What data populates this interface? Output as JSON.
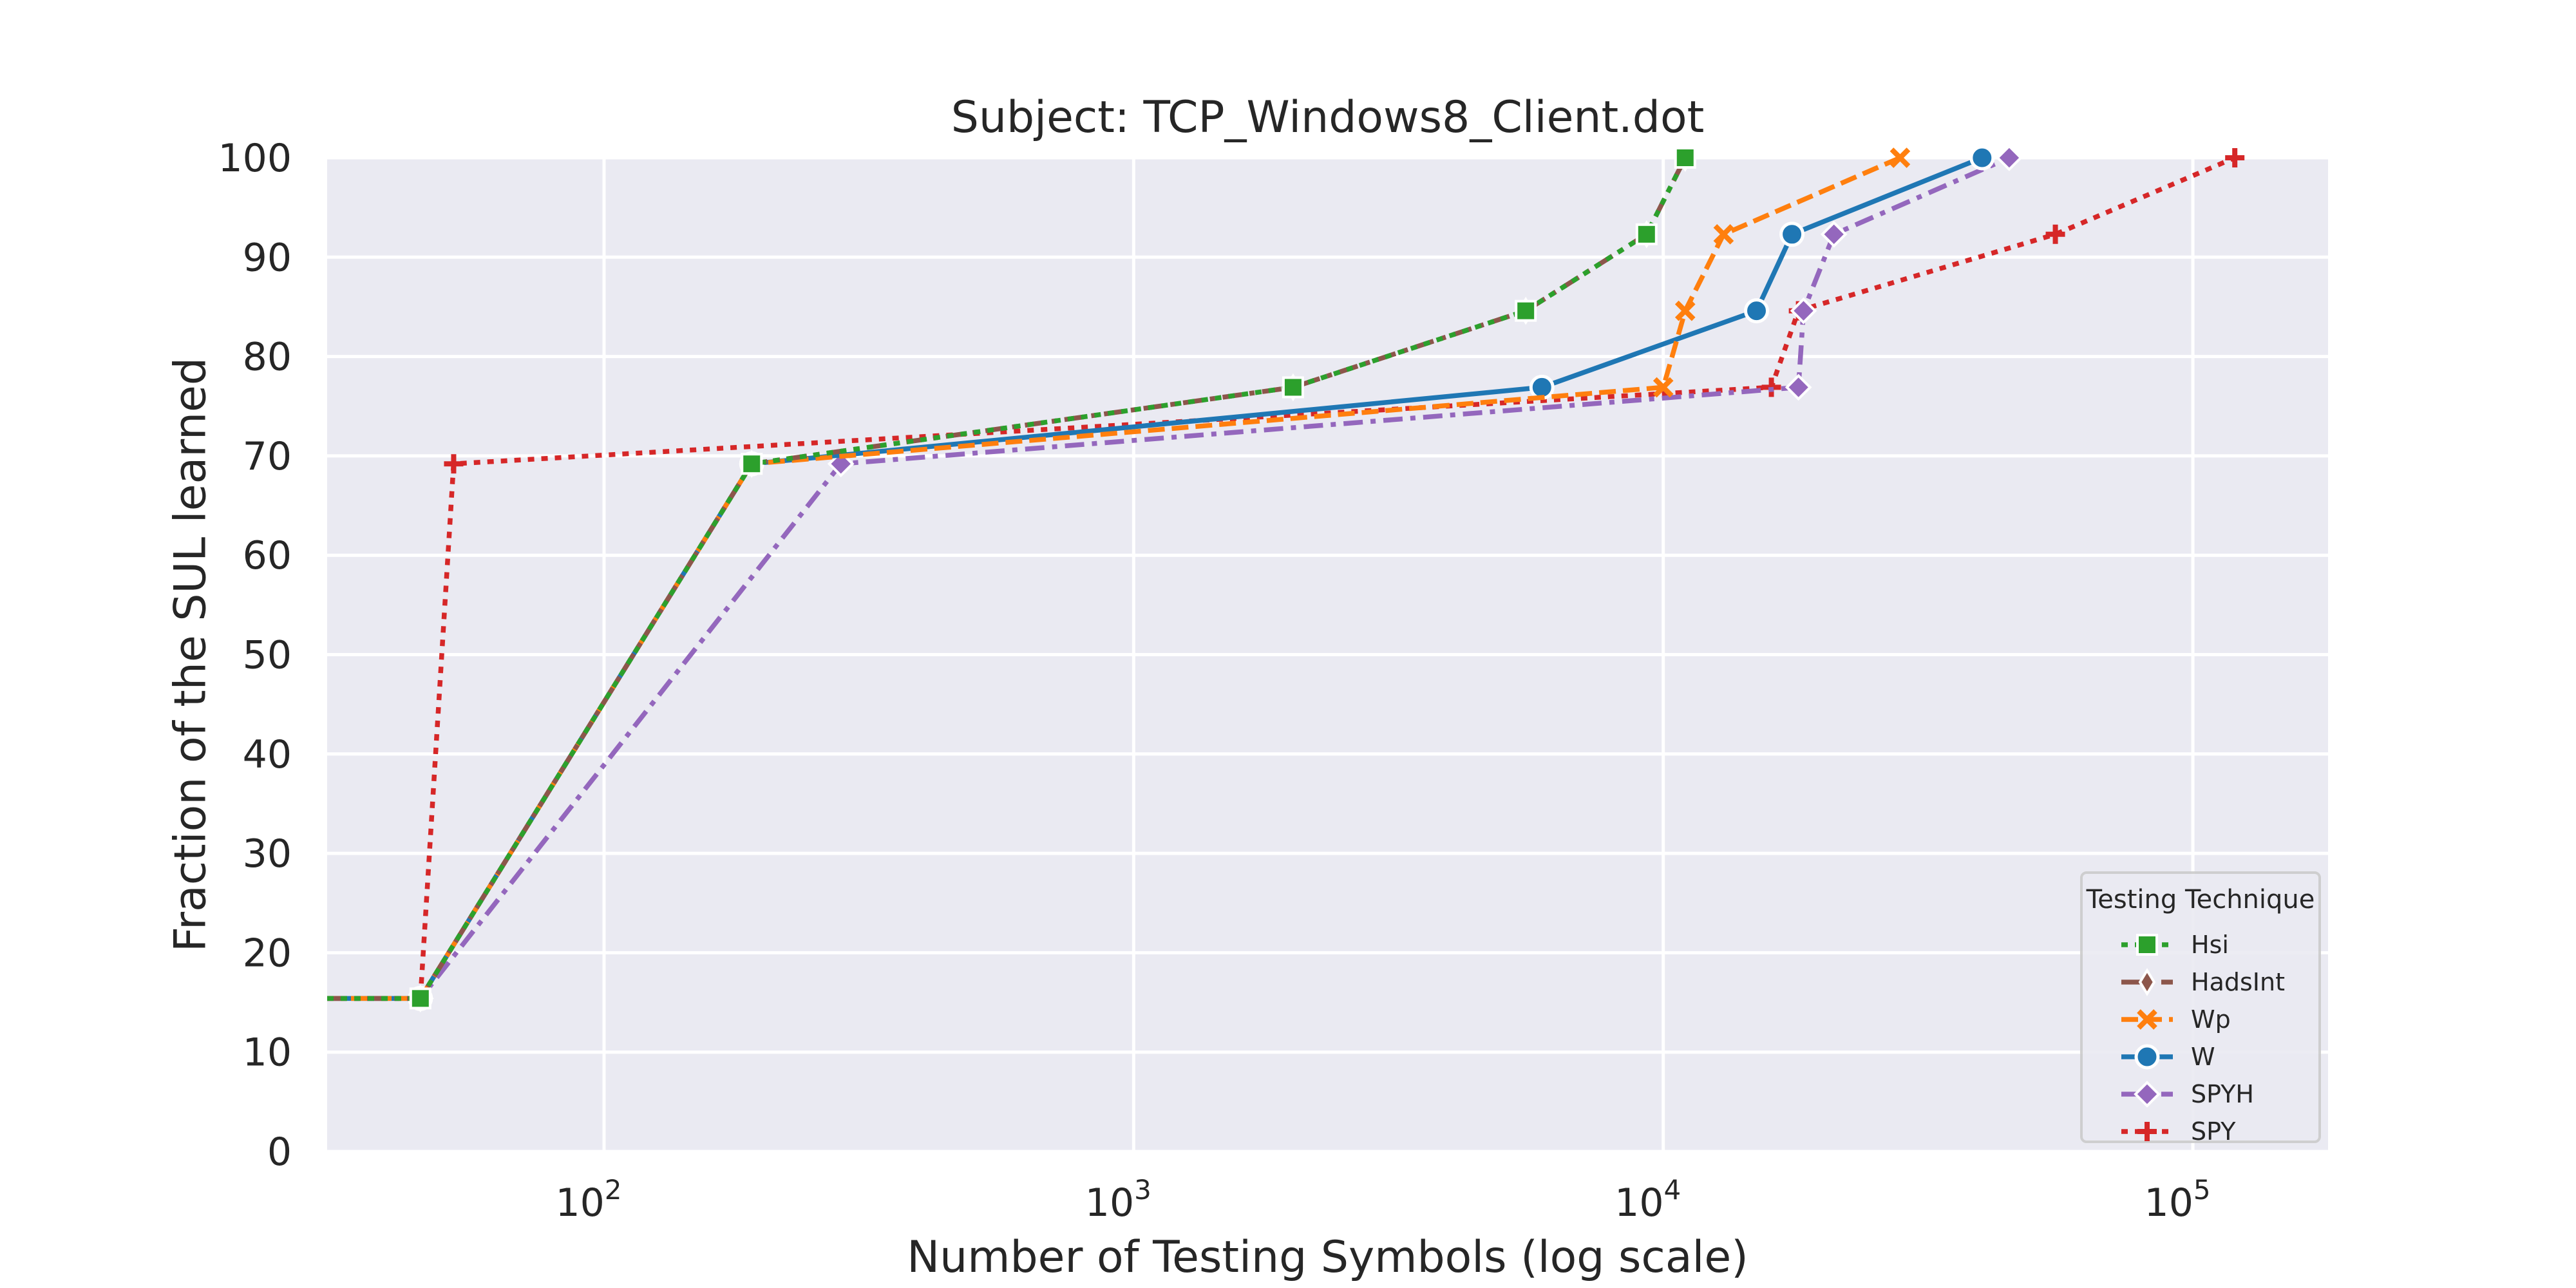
{
  "chart_data": {
    "type": "line",
    "title": "Subject: TCP_Windows8_Client.dot",
    "xlabel": "Number of Testing Symbols (log scale)",
    "ylabel": "Fraction of the SUL learned",
    "xscale": "log",
    "xlim": [
      30,
      180000
    ],
    "ylim": [
      0,
      100
    ],
    "yticks": [
      "0",
      "10",
      "20",
      "30",
      "40",
      "50",
      "60",
      "70",
      "80",
      "90",
      "100"
    ],
    "xticks": [
      {
        "value": 100,
        "base": "10",
        "exp": "2"
      },
      {
        "value": 1000,
        "base": "10",
        "exp": "3"
      },
      {
        "value": 10000,
        "base": "10",
        "exp": "4"
      },
      {
        "value": 100000,
        "base": "10",
        "exp": "5"
      }
    ],
    "grid": true,
    "legend": {
      "title": "Testing Technique",
      "placement": "lower-right"
    },
    "series": [
      {
        "name": "Hsi",
        "color": "#2ca02c",
        "dash": "dotted",
        "marker": "square",
        "points": [
          [
            30,
            15.4
          ],
          [
            45,
            15.4
          ],
          [
            190,
            69.2
          ],
          [
            2000,
            76.9
          ],
          [
            5500,
            84.6
          ],
          [
            9300,
            92.3
          ],
          [
            11000,
            100
          ]
        ]
      },
      {
        "name": "HadsInt",
        "color": "#8c564b",
        "dash": "dashdot",
        "marker": "thin-diamond",
        "points": [
          [
            30,
            15.4
          ],
          [
            45,
            15.4
          ],
          [
            190,
            69.2
          ],
          [
            2000,
            76.9
          ],
          [
            5500,
            84.6
          ],
          [
            9300,
            92.3
          ],
          [
            11000,
            100
          ]
        ]
      },
      {
        "name": "Wp",
        "color": "#ff7f0e",
        "dash": "dashed",
        "marker": "x",
        "points": [
          [
            30,
            15.4
          ],
          [
            45,
            15.4
          ],
          [
            190,
            69.2
          ],
          [
            10000,
            76.9
          ],
          [
            11000,
            84.6
          ],
          [
            13000,
            92.3
          ],
          [
            28000,
            100
          ]
        ]
      },
      {
        "name": "W",
        "color": "#1f77b4",
        "dash": "solid",
        "marker": "circle",
        "points": [
          [
            30,
            15.4
          ],
          [
            45,
            15.4
          ],
          [
            190,
            69.2
          ],
          [
            5900,
            76.9
          ],
          [
            15000,
            84.6
          ],
          [
            17500,
            92.3
          ],
          [
            40000,
            100
          ]
        ]
      },
      {
        "name": "SPYH",
        "color": "#9467bd",
        "dash": "dashdot",
        "marker": "diamond",
        "points": [
          [
            30,
            15.4
          ],
          [
            45,
            15.4
          ],
          [
            280,
            69.2
          ],
          [
            18000,
            76.9
          ],
          [
            18400,
            84.6
          ],
          [
            21000,
            92.3
          ],
          [
            45000,
            100
          ]
        ]
      },
      {
        "name": "SPY",
        "color": "#d62728",
        "dash": "dotted",
        "marker": "plus",
        "points": [
          [
            30,
            15.4
          ],
          [
            45,
            15.4
          ],
          [
            52,
            69.2
          ],
          [
            16000,
            76.9
          ],
          [
            18000,
            84.6
          ],
          [
            55000,
            92.3
          ],
          [
            120000,
            100
          ]
        ]
      }
    ]
  }
}
